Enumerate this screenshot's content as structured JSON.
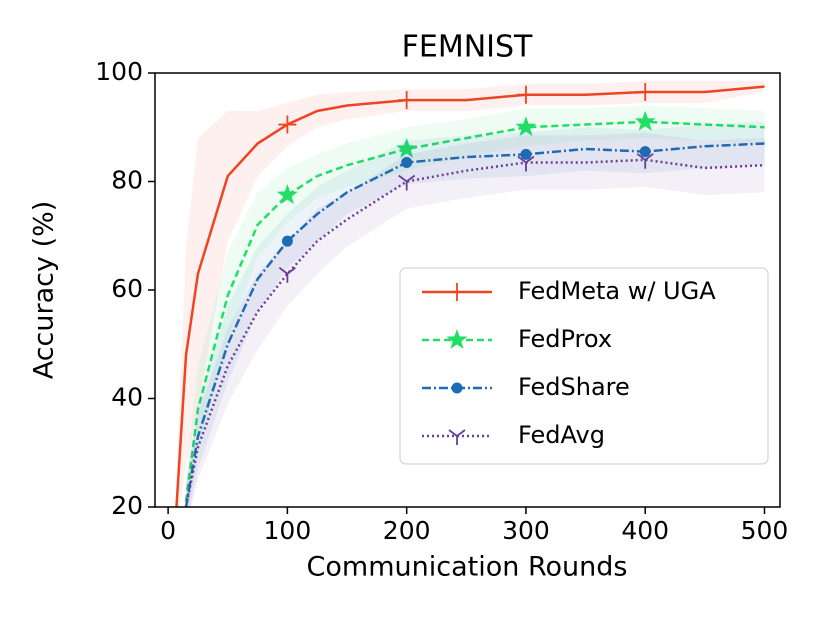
{
  "chart_data": {
    "type": "line",
    "title": "FEMNIST",
    "x_label": "Communication Rounds",
    "y_label": "Accuracy (%)",
    "x": [
      7,
      15,
      25,
      50,
      75,
      100,
      125,
      150,
      200,
      250,
      300,
      350,
      400,
      450,
      500
    ],
    "xlim": [
      -11,
      513
    ],
    "xticks": [
      0,
      100,
      200,
      300,
      400,
      500
    ],
    "ylim": [
      20,
      100
    ],
    "yticks": [
      20,
      40,
      60,
      80,
      100
    ],
    "marker_x": [
      100,
      200,
      300,
      400
    ],
    "legend": "lower right",
    "series": [
      {
        "name": "FedMeta w/ UGA",
        "color": "#ee4422",
        "dash": "none",
        "marker": "vline",
        "values": [
          20,
          48,
          63,
          81,
          87,
          90.5,
          93,
          94,
          95,
          95,
          96,
          96,
          96.5,
          96.5,
          97.5
        ],
        "spread": [
          5,
          20,
          25,
          12,
          6,
          4,
          3,
          2.5,
          2,
          2,
          2,
          2,
          2,
          2,
          1
        ]
      },
      {
        "name": "FedProx",
        "color": "#22dd66",
        "dash": "7,4",
        "marker": "star",
        "values": [
          null,
          21,
          38,
          59,
          72,
          77.5,
          81,
          83,
          86,
          88,
          90,
          90.5,
          91,
          90.5,
          90
        ],
        "spread": [
          null,
          5,
          8,
          8,
          6,
          5,
          4,
          4,
          4,
          3.5,
          3.5,
          3,
          3,
          3,
          3
        ]
      },
      {
        "name": "FedShare",
        "color": "#1a6eb5",
        "dash": "9,3,2,3",
        "marker": "circle",
        "values": [
          null,
          20,
          33,
          50,
          62,
          69,
          74,
          78,
          83.5,
          84.5,
          85,
          86,
          85.5,
          86.5,
          87
        ],
        "spread": [
          null,
          4,
          6,
          7,
          6,
          5,
          5,
          4,
          4,
          4,
          4,
          4,
          4,
          4,
          4
        ]
      },
      {
        "name": "FedAvg",
        "color": "#6a3d9a",
        "dash": "2,3",
        "marker": "tri_down",
        "values": [
          null,
          20,
          31,
          46,
          56,
          63,
          69,
          73,
          80,
          82,
          83.5,
          83.5,
          84,
          82.5,
          83
        ],
        "spread": [
          null,
          4,
          6,
          7,
          7,
          6,
          6,
          5,
          5,
          5,
          5,
          5,
          5,
          5,
          5
        ]
      }
    ]
  }
}
